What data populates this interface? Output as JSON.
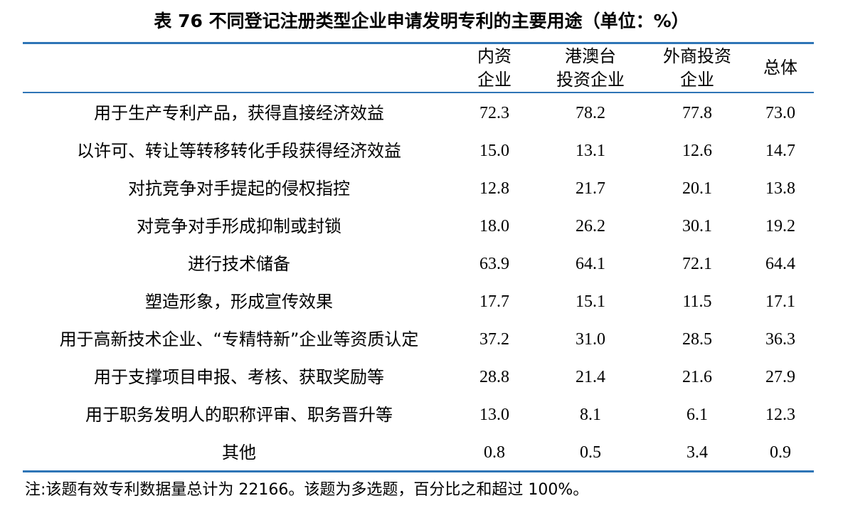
{
  "title": "表 76  不同登记注册类型企业申请发明专利的主要用途（单位：%）",
  "chart_data": {
    "type": "table",
    "columns": [
      {
        "line1": "内资",
        "line2": "企业"
      },
      {
        "line1": "港澳台",
        "line2": "投资企业"
      },
      {
        "line1": "外商投资",
        "line2": "企业"
      },
      {
        "line1": "总体",
        "line2": ""
      }
    ],
    "rows": [
      {
        "label": "用于生产专利产品，获得直接经济效益",
        "values": [
          "72.3",
          "78.2",
          "77.8",
          "73.0"
        ]
      },
      {
        "label": "以许可、转让等转移转化手段获得经济效益",
        "values": [
          "15.0",
          "13.1",
          "12.6",
          "14.7"
        ]
      },
      {
        "label": "对抗竞争对手提起的侵权指控",
        "values": [
          "12.8",
          "21.7",
          "20.1",
          "13.8"
        ]
      },
      {
        "label": "对竞争对手形成抑制或封锁",
        "values": [
          "18.0",
          "26.2",
          "30.1",
          "19.2"
        ]
      },
      {
        "label": "进行技术储备",
        "values": [
          "63.9",
          "64.1",
          "72.1",
          "64.4"
        ]
      },
      {
        "label": "塑造形象，形成宣传效果",
        "values": [
          "17.7",
          "15.1",
          "11.5",
          "17.1"
        ]
      },
      {
        "label": "用于高新技术企业、“专精特新”企业等资质认定",
        "values": [
          "37.2",
          "31.0",
          "28.5",
          "36.3"
        ]
      },
      {
        "label": "用于支撑项目申报、考核、获取奖励等",
        "values": [
          "28.8",
          "21.4",
          "21.6",
          "27.9"
        ]
      },
      {
        "label": "用于职务发明人的职称评审、职务晋升等",
        "values": [
          "13.0",
          "8.1",
          "6.1",
          "12.3"
        ]
      },
      {
        "label": "其他",
        "values": [
          "0.8",
          "0.5",
          "3.4",
          "0.9"
        ]
      }
    ]
  },
  "note": "注:该题有效专利数据量总计为 22166。该题为多选题，百分比之和超过 100%。",
  "colors": {
    "rule": "#2e75b6",
    "text": "#000000"
  }
}
